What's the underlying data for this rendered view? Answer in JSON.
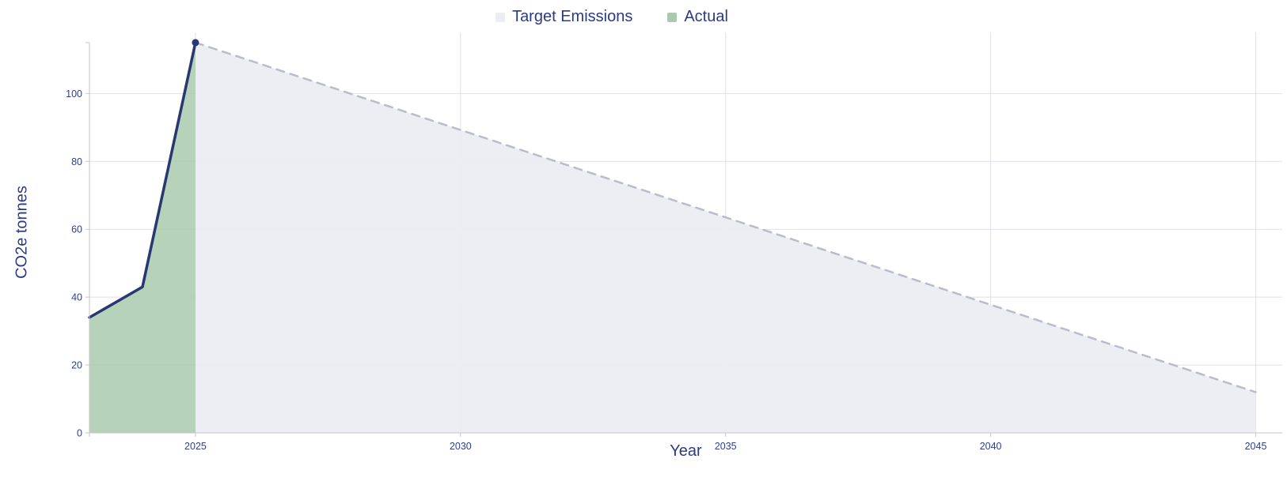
{
  "chart_data": {
    "type": "area",
    "xlabel": "Year",
    "ylabel": "CO2e tonnes",
    "x_domain": [
      2023,
      2045.5
    ],
    "y_domain": [
      0,
      118
    ],
    "y_axis_end": 115,
    "x_ticks": [
      2025,
      2030,
      2035,
      2040,
      2045
    ],
    "y_ticks": [
      0,
      20,
      40,
      60,
      80,
      100
    ],
    "grid": true,
    "legend_position": "top-center",
    "series": [
      {
        "name": "Target Emissions",
        "points": [
          [
            2025,
            115
          ],
          [
            2045,
            12
          ]
        ],
        "line_color": "#babccb",
        "line_width": 2.5,
        "line_dash": "10 8",
        "fill_color": "#ececf3",
        "fill_opacity": 0.92,
        "marker": "none"
      },
      {
        "name": "Actual",
        "points": [
          [
            2023,
            34
          ],
          [
            2024,
            43
          ],
          [
            2025,
            115
          ]
        ],
        "line_color": "#283870",
        "line_width": 3.5,
        "line_dash": "",
        "fill_color": "#a9caac",
        "fill_opacity": 0.85,
        "marker": "last",
        "marker_color": "#283870",
        "marker_radius": 4.5
      }
    ],
    "legend": [
      {
        "label": "Target Emissions",
        "swatch_color": "#ececf3"
      },
      {
        "label": "Actual",
        "swatch_color": "#a9caac"
      }
    ],
    "colors": {
      "tick_label": "#30408c",
      "axis_title": "#2b3b82",
      "legend_text": "#2b3b82",
      "grid": "#e1e1e8",
      "axis_line": "#c6c6ce",
      "background": "#ffffff"
    }
  }
}
